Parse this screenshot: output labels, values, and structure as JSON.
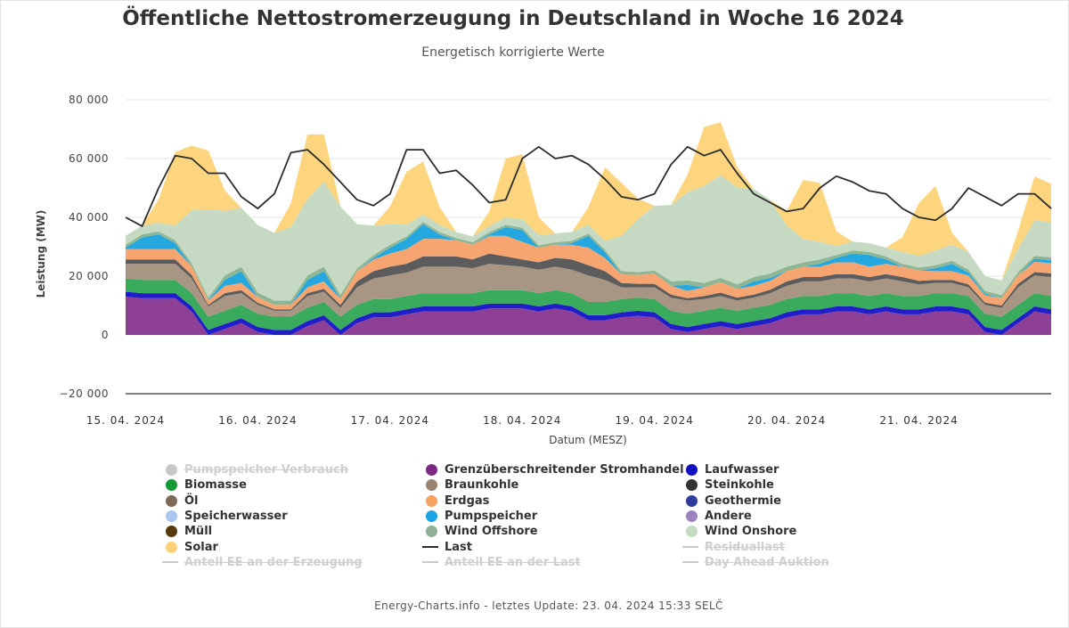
{
  "chart_data": {
    "type": "area",
    "title": "Öffentliche Nettostromerzeugung in Deutschland in Woche 16 2024",
    "subtitle": "Energetisch korrigierte Werte",
    "ylabel": "Leistung (MW)",
    "xlabel": "Datum (MESZ)",
    "ylim": [
      -20000,
      80000
    ],
    "yticks": [
      "−20 000",
      "0",
      "20 000",
      "40 000",
      "60 000",
      "80 000"
    ],
    "ytick_values": [
      -20000,
      0,
      20000,
      40000,
      60000,
      80000
    ],
    "x_days": [
      "15. 04. 2024",
      "16. 04. 2024",
      "17. 04. 2024",
      "18. 04. 2024",
      "19. 04. 2024",
      "20. 04. 2024",
      "21. 04. 2024"
    ],
    "x_hours": [
      0,
      3,
      6,
      9,
      12,
      15,
      18,
      21,
      24,
      27,
      30,
      33,
      36,
      39,
      42,
      45,
      48,
      51,
      54,
      57,
      60,
      63,
      66,
      69,
      72,
      75,
      78,
      81,
      84,
      87,
      90,
      93,
      96,
      99,
      102,
      105,
      108,
      111,
      114,
      117,
      120,
      123,
      126,
      129,
      132,
      135,
      138,
      141,
      144,
      147,
      150,
      153,
      156,
      159,
      162,
      165,
      168
    ],
    "series": [
      {
        "name": "Grenzüberschreitender Stromhandel",
        "color": "#8e4097",
        "values": [
          13000,
          12500,
          12500,
          12500,
          8000,
          0,
          2000,
          4000,
          1000,
          0,
          0,
          3000,
          5000,
          0,
          4000,
          6000,
          6000,
          7000,
          8000,
          8000,
          8000,
          8000,
          9000,
          9000,
          9000,
          8000,
          9000,
          8000,
          5000,
          5000,
          6000,
          6500,
          6000,
          2000,
          1000,
          2000,
          3000,
          2000,
          3000,
          4000,
          6000,
          7000,
          7000,
          8000,
          8000,
          7000,
          8000,
          7000,
          7000,
          8000,
          8000,
          7000,
          1000,
          0,
          4000,
          8000,
          7000
        ]
      },
      {
        "name": "Laufwasser",
        "color": "#1f1ec8",
        "values": [
          1700,
          1700,
          1700,
          1700,
          1700,
          1700,
          1700,
          1700,
          1700,
          1700,
          1700,
          1700,
          1700,
          1700,
          1700,
          1700,
          1700,
          1700,
          1700,
          1700,
          1700,
          1700,
          1700,
          1700,
          1700,
          1700,
          1700,
          1700,
          1700,
          1700,
          1700,
          1700,
          1700,
          1700,
          1700,
          1700,
          1700,
          1700,
          1700,
          1700,
          1700,
          1700,
          1700,
          1700,
          1700,
          1700,
          1700,
          1700,
          1700,
          1700,
          1700,
          1700,
          1700,
          1700,
          1700,
          1700,
          1700
        ]
      },
      {
        "name": "Biomasse",
        "color": "#3aaa5c",
        "values": [
          4500,
          4500,
          4500,
          4500,
          4500,
          4500,
          4500,
          4500,
          4500,
          4500,
          4500,
          4500,
          4500,
          4500,
          4500,
          4500,
          4500,
          4500,
          4500,
          4500,
          4500,
          4500,
          4500,
          4500,
          4500,
          4500,
          4500,
          4500,
          4500,
          4500,
          4500,
          4500,
          4500,
          4500,
          4500,
          4500,
          4500,
          4500,
          4500,
          4500,
          4500,
          4500,
          4500,
          4500,
          4500,
          4500,
          4500,
          4500,
          4500,
          4500,
          4500,
          4500,
          4500,
          4500,
          4500,
          4500,
          4500
        ]
      },
      {
        "name": "Braunkohle",
        "color": "#a89583",
        "values": [
          5000,
          5500,
          5500,
          5500,
          5000,
          3500,
          5000,
          4000,
          3000,
          2000,
          2000,
          4000,
          3500,
          3000,
          6000,
          7000,
          8000,
          8000,
          9000,
          9000,
          9000,
          8500,
          9000,
          8500,
          8000,
          8000,
          8000,
          8000,
          9000,
          7500,
          4000,
          3500,
          4000,
          4500,
          4500,
          4000,
          4000,
          3500,
          3500,
          4000,
          4500,
          5000,
          5000,
          5000,
          5000,
          5000,
          5000,
          5000,
          4000,
          3500,
          3500,
          3000,
          3000,
          3000,
          6000,
          6000,
          6500
        ]
      },
      {
        "name": "Steinkohle",
        "color": "#5c5c5c",
        "values": [
          1500,
          1500,
          1500,
          1500,
          1200,
          500,
          1000,
          1000,
          700,
          500,
          500,
          1000,
          1000,
          1000,
          2000,
          2500,
          3000,
          3000,
          3500,
          3500,
          3500,
          3000,
          3500,
          3000,
          2500,
          2500,
          3000,
          3500,
          3500,
          3000,
          1500,
          1200,
          1200,
          1000,
          800,
          1000,
          1200,
          1000,
          1000,
          1200,
          1500,
          1500,
          1500,
          1500,
          1500,
          1500,
          1500,
          1500,
          1200,
          1000,
          1000,
          1000,
          800,
          800,
          1200,
          1200,
          1200
        ]
      },
      {
        "name": "Erdgas",
        "color": "#f6a570",
        "values": [
          3500,
          3500,
          3500,
          3500,
          3000,
          1500,
          2500,
          2500,
          2000,
          1500,
          1500,
          2000,
          2500,
          2000,
          3500,
          4000,
          4500,
          5000,
          6000,
          6000,
          5500,
          5000,
          6000,
          7000,
          6000,
          5000,
          4500,
          5000,
          6000,
          4500,
          3000,
          3000,
          3500,
          3000,
          2500,
          3000,
          3500,
          3000,
          3000,
          3000,
          3500,
          3500,
          3500,
          4000,
          4000,
          3500,
          3500,
          3500,
          3500,
          3000,
          3000,
          3000,
          2500,
          2500,
          3000,
          3500,
          3500
        ]
      },
      {
        "name": "Pumpspeicher",
        "color": "#25a7e0",
        "values": [
          500,
          4000,
          5000,
          2000,
          0,
          0,
          2000,
          4000,
          0,
          0,
          0,
          2500,
          3500,
          0,
          0,
          500,
          2000,
          3500,
          5000,
          1500,
          0,
          0,
          500,
          3000,
          4000,
          0,
          0,
          500,
          4000,
          2000,
          0,
          0,
          0,
          0,
          2000,
          0,
          0,
          0,
          1500,
          1000,
          0,
          0,
          1000,
          1500,
          3000,
          4000,
          1500,
          0,
          0,
          1000,
          2500,
          1000,
          500,
          0,
          0,
          1000,
          1000
        ]
      },
      {
        "name": "Wind Offshore",
        "color": "#8fb694",
        "values": [
          1000,
          1000,
          1000,
          1000,
          1000,
          1000,
          1500,
          1500,
          1500,
          1500,
          1500,
          1500,
          1500,
          1500,
          1000,
          1000,
          1000,
          800,
          800,
          800,
          800,
          800,
          800,
          800,
          800,
          800,
          800,
          800,
          800,
          800,
          1000,
          1000,
          1000,
          1500,
          1500,
          1500,
          1500,
          1500,
          1500,
          1500,
          1500,
          1500,
          1500,
          1000,
          1000,
          1000,
          1000,
          1000,
          1000,
          1000,
          1000,
          1000,
          1000,
          1000,
          1000,
          1000,
          1000
        ]
      },
      {
        "name": "Wind Onshore",
        "color": "#c6dac3",
        "values": [
          3000,
          3000,
          3000,
          5000,
          18000,
          30000,
          22000,
          20000,
          23000,
          23000,
          25000,
          26000,
          29000,
          30000,
          15000,
          10000,
          7000,
          4000,
          2500,
          2500,
          2000,
          2000,
          2000,
          2500,
          3000,
          3500,
          3000,
          3000,
          3000,
          3000,
          12000,
          18000,
          22000,
          26000,
          30000,
          33000,
          35000,
          33000,
          30000,
          25000,
          14000,
          8000,
          6000,
          3000,
          3000,
          3000,
          3000,
          4000,
          4000,
          5000,
          5500,
          6000,
          5000,
          5000,
          8000,
          12000,
          12000
        ]
      },
      {
        "name": "Solar",
        "color": "#fdd57e",
        "values": [
          0,
          0,
          8000,
          25000,
          22000,
          20000,
          7000,
          0,
          0,
          0,
          8000,
          22000,
          16000,
          0,
          0,
          0,
          6000,
          18000,
          18000,
          6000,
          0,
          0,
          5000,
          20000,
          22000,
          6000,
          0,
          0,
          6000,
          25000,
          18000,
          7000,
          0,
          0,
          6000,
          20000,
          18000,
          7000,
          0,
          0,
          5000,
          20000,
          20000,
          5000,
          0,
          0,
          0,
          5000,
          18000,
          22000,
          4000,
          0,
          0,
          0,
          6000,
          15000,
          13000
        ]
      }
    ],
    "last": {
      "name": "Last",
      "color": "#2c2c2c",
      "values": [
        40000,
        37000,
        50000,
        61000,
        60000,
        55000,
        55000,
        47000,
        43000,
        48000,
        62000,
        63000,
        58000,
        52000,
        46000,
        44000,
        48000,
        63000,
        63000,
        55000,
        56000,
        51000,
        45000,
        46000,
        60000,
        64000,
        60000,
        61000,
        58000,
        53000,
        47000,
        46000,
        48000,
        58000,
        64000,
        61000,
        63000,
        55000,
        48000,
        45000,
        42000,
        43000,
        50000,
        54000,
        52000,
        49000,
        48000,
        43000,
        40000,
        39000,
        43000,
        50000,
        47000,
        44000,
        48000,
        48000,
        43000
      ]
    },
    "legend": [
      {
        "label": "Pumpspeicher Verbrauch",
        "color": "#c8c8c8",
        "kind": "dot",
        "enabled": false
      },
      {
        "label": "Grenzüberschreitender Stromhandel",
        "color": "#7b2a82",
        "kind": "dot",
        "enabled": true
      },
      {
        "label": "Laufwasser",
        "color": "#1110c0",
        "kind": "dot",
        "enabled": true
      },
      {
        "label": "Biomasse",
        "color": "#129936",
        "kind": "dot",
        "enabled": true
      },
      {
        "label": "Braunkohle",
        "color": "#9a8470",
        "kind": "dot",
        "enabled": true
      },
      {
        "label": "Steinkohle",
        "color": "#333333",
        "kind": "dot",
        "enabled": true
      },
      {
        "label": "Öl",
        "color": "#7d6b5a",
        "kind": "dot",
        "enabled": true
      },
      {
        "label": "Erdgas",
        "color": "#f8a265",
        "kind": "dot",
        "enabled": true
      },
      {
        "label": "Geothermie",
        "color": "#2e3a9c",
        "kind": "dot",
        "enabled": true
      },
      {
        "label": "Speicherwasser",
        "color": "#a9c6f1",
        "kind": "dot",
        "enabled": true
      },
      {
        "label": "Pumpspeicher",
        "color": "#1aa3e6",
        "kind": "dot",
        "enabled": true
      },
      {
        "label": "Andere",
        "color": "#9b84bd",
        "kind": "dot",
        "enabled": true
      },
      {
        "label": "Müll",
        "color": "#553a0e",
        "kind": "dot",
        "enabled": true
      },
      {
        "label": "Wind Offshore",
        "color": "#90b095",
        "kind": "dot",
        "enabled": true
      },
      {
        "label": "Wind Onshore",
        "color": "#c5dcc0",
        "kind": "dot",
        "enabled": true
      },
      {
        "label": "Solar",
        "color": "#fdd27a",
        "kind": "dot",
        "enabled": true
      },
      {
        "label": "Last",
        "color": "#2c2c2c",
        "kind": "line",
        "enabled": true
      },
      {
        "label": "Residuallast",
        "color": "#c8c8c8",
        "kind": "line",
        "enabled": false
      },
      {
        "label": "Anteil EE an der Erzeugung",
        "color": "#c8c8c8",
        "kind": "line",
        "enabled": false
      },
      {
        "label": "Anteil EE an der Last",
        "color": "#c8c8c8",
        "kind": "line",
        "enabled": false
      },
      {
        "label": "Day Ahead Auktion",
        "color": "#c8c8c8",
        "kind": "line",
        "enabled": false
      }
    ],
    "grid": true,
    "legend_position": "bottom"
  },
  "footer": "Energy-Charts.info - letztes Update: 23. 04. 2024 15:33 SELČ"
}
